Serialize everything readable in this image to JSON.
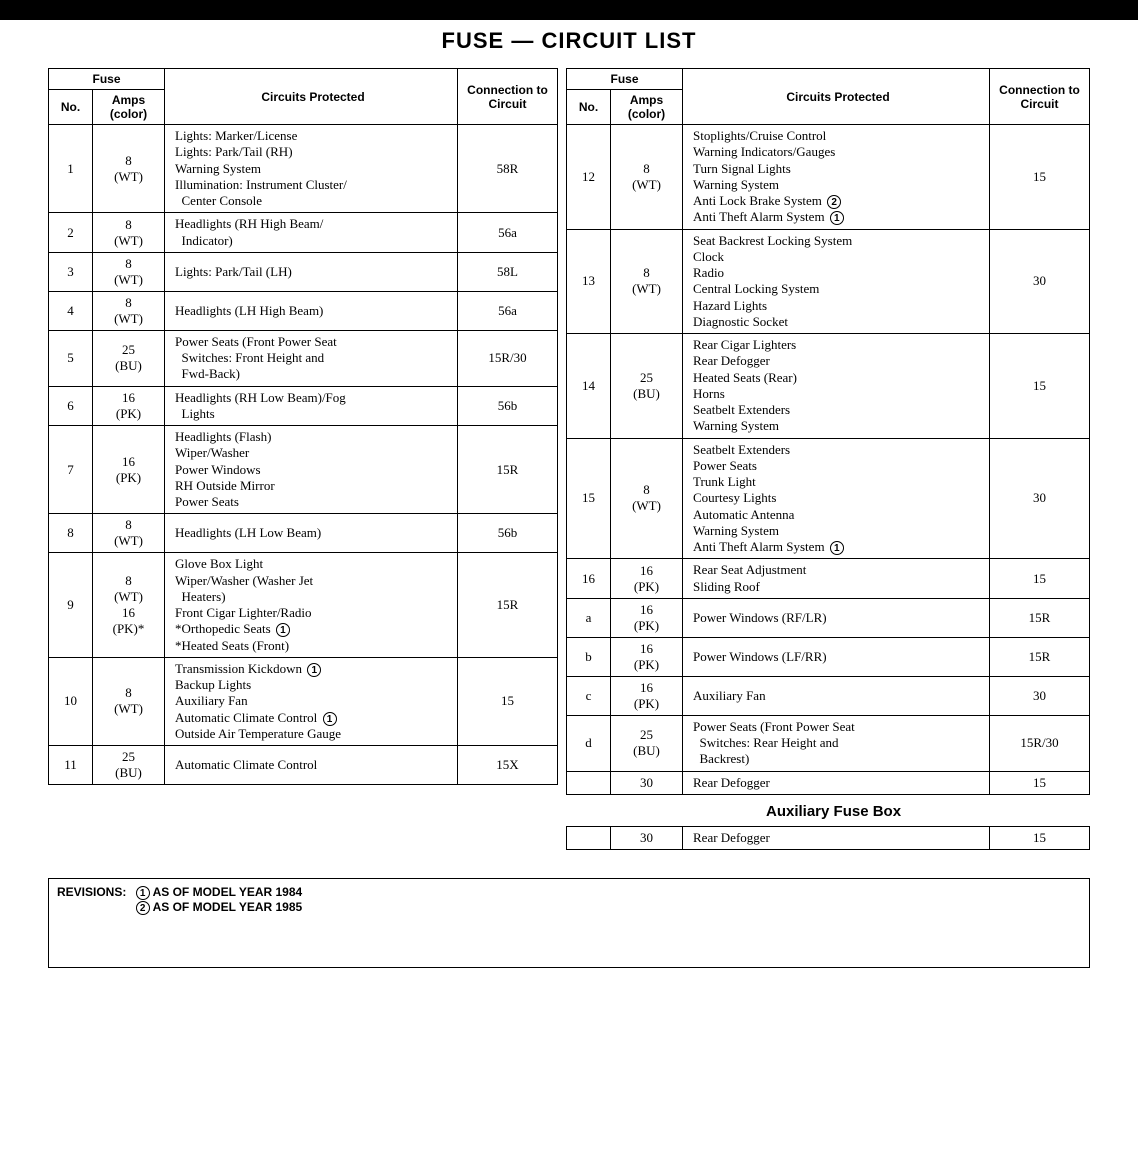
{
  "title": "FUSE — CIRCUIT LIST",
  "headers": {
    "fuse": "Fuse",
    "no": "No.",
    "amps": "Amps (color)",
    "circuits": "Circuits Protected",
    "conn": "Connection to Circuit"
  },
  "left_rows": [
    {
      "no": "1",
      "amps": [
        "8",
        "(WT)"
      ],
      "circuits": [
        "Lights: Marker/License",
        "Lights: Park/Tail (RH)",
        "Warning System",
        "Illumination: Instrument Cluster/",
        "  Center Console"
      ],
      "conn": "58R"
    },
    {
      "no": "2",
      "amps": [
        "8",
        "(WT)"
      ],
      "circuits": [
        "Headlights (RH High Beam/",
        "  Indicator)"
      ],
      "conn": "56a",
      "merge_next_circ": false,
      "share_circ_with_next": false
    },
    {
      "no": "3",
      "amps": [
        "8",
        "(WT)"
      ],
      "circuits": [
        "Lights: Park/Tail (LH)"
      ],
      "conn": "58L"
    },
    {
      "no": "4",
      "amps": [
        "8",
        "(WT)"
      ],
      "circuits": [
        "Headlights (LH High Beam)"
      ],
      "conn": "56a"
    },
    {
      "no": "5",
      "amps": [
        "25",
        "(BU)"
      ],
      "circuits": [
        "Power Seats (Front Power Seat",
        "  Switches: Front Height and",
        "  Fwd-Back)"
      ],
      "conn": "15R/30"
    },
    {
      "no": "6",
      "amps": [
        "16",
        "(PK)"
      ],
      "circuits": [
        "Headlights (RH Low Beam)/Fog",
        "  Lights"
      ],
      "conn": "56b"
    },
    {
      "no": "7",
      "amps": [
        "16",
        "(PK)"
      ],
      "circuits": [
        "Headlights (Flash)",
        "Wiper/Washer",
        "Power Windows",
        "RH Outside Mirror",
        "Power Seats"
      ],
      "conn": "15R"
    },
    {
      "no": "8",
      "amps": [
        "8",
        "(WT)"
      ],
      "circuits": [
        "Headlights (LH Low Beam)"
      ],
      "conn": "56b"
    },
    {
      "no": "9",
      "amps": [
        "8",
        "(WT)",
        "16",
        "(PK)*"
      ],
      "circuits": [
        "Glove Box Light",
        "Wiper/Washer (Washer Jet",
        "  Heaters)",
        "Front Cigar Lighter/Radio",
        "*Orthopedic Seats ①",
        "*Heated Seats (Front)"
      ],
      "conn": "15R"
    },
    {
      "no": "10",
      "amps": [
        "8",
        "(WT)"
      ],
      "circuits": [
        "Transmission Kickdown ①",
        "Backup Lights",
        "Auxiliary Fan",
        "Automatic Climate Control       ①",
        "Outside Air Temperature Gauge"
      ],
      "conn": "15"
    },
    {
      "no": "11",
      "amps": [
        "25",
        "(BU)"
      ],
      "circuits": [
        "Automatic Climate Control"
      ],
      "conn": "15X"
    }
  ],
  "right_rows": [
    {
      "no": "12",
      "amps": [
        "8",
        "(WT)"
      ],
      "circuits": [
        "Stoplights/Cruise Control",
        "Warning Indicators/Gauges",
        "Turn Signal Lights",
        "Warning System",
        "Anti Lock Brake System ②",
        "Anti Theft Alarm System ①"
      ],
      "conn": "15"
    },
    {
      "no": "13",
      "amps": [
        "8",
        "(WT)"
      ],
      "circuits": [
        "Seat Backrest Locking System",
        "Clock",
        "Radio",
        "Central Locking System",
        "Hazard Lights",
        "Diagnostic Socket"
      ],
      "conn": "30"
    },
    {
      "no": "14",
      "amps": [
        "25",
        "(BU)"
      ],
      "circuits": [
        "Rear Cigar Lighters",
        "Rear Defogger",
        "Heated Seats (Rear)",
        "Horns",
        "Seatbelt Extenders",
        "Warning System"
      ],
      "conn": "15"
    },
    {
      "no": "15",
      "amps": [
        "8",
        "(WT)"
      ],
      "circuits": [
        "Seatbelt Extenders",
        "Power Seats",
        "Trunk Light",
        "Courtesy Lights",
        "Automatic Antenna",
        "Warning System",
        "Anti Theft Alarm System ①"
      ],
      "conn": "30"
    },
    {
      "no": "16",
      "amps": [
        "16",
        "(PK)"
      ],
      "circuits": [
        "Rear Seat Adjustment",
        "Sliding Roof"
      ],
      "conn": "15"
    },
    {
      "no": "a",
      "amps": [
        "16",
        "(PK)"
      ],
      "circuits": [
        "Power Windows (RF/LR)"
      ],
      "conn": "15R"
    },
    {
      "no": "b",
      "amps": [
        "16",
        "(PK)"
      ],
      "circuits": [
        "Power Windows (LF/RR)"
      ],
      "conn": "15R"
    },
    {
      "no": "c",
      "amps": [
        "16",
        "(PK)"
      ],
      "circuits": [
        "Auxiliary Fan"
      ],
      "conn": "30"
    },
    {
      "no": "d",
      "amps": [
        "25",
        "(BU)"
      ],
      "circuits": [
        "Power Seats (Front Power Seat",
        "  Switches: Rear Height and",
        "  Backrest)"
      ],
      "conn": "15R/30"
    },
    {
      "no": "",
      "amps": [
        "30"
      ],
      "circuits": [
        "Rear Defogger"
      ],
      "conn": "15"
    }
  ],
  "aux_title": "Auxiliary Fuse Box",
  "aux_row": {
    "no": "",
    "amps": [
      "30"
    ],
    "circuits": [
      "Rear Defogger"
    ],
    "conn": "15"
  },
  "revisions": {
    "label": "REVISIONS:",
    "lines": [
      {
        "num": "1",
        "text": "AS OF MODEL YEAR 1984"
      },
      {
        "num": "2",
        "text": "AS OF MODEL YEAR 1985"
      }
    ]
  }
}
